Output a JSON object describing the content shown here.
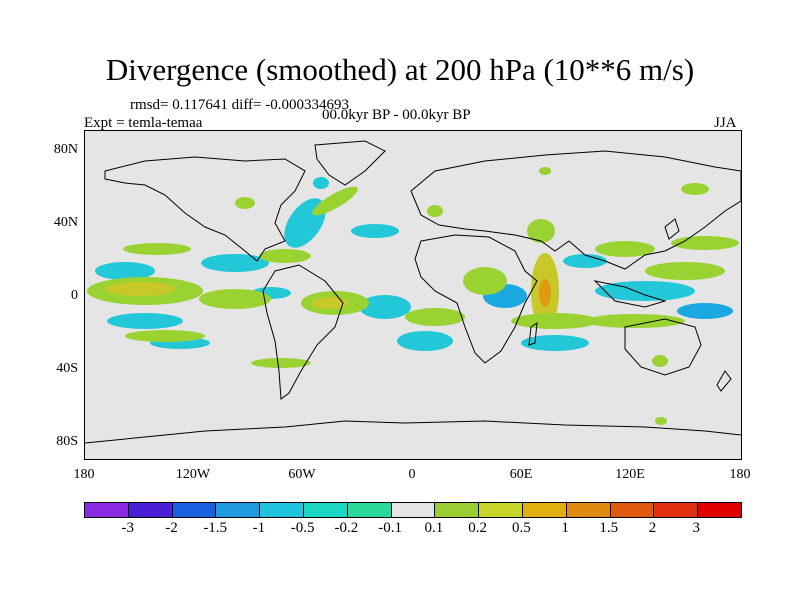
{
  "title": "Divergence (smoothed) at 200 hPa (10**6 m/s)",
  "stats": "rmsd= 0.117641 diff= -0.000334693",
  "period": "00.0kyr BP - 00.0kyr BP",
  "expt": "Expt = temla-temaa",
  "season": "JJA",
  "lat_labels": [
    "80N",
    "40N",
    "0",
    "40S",
    "80S"
  ],
  "lon_labels": [
    "180",
    "120W",
    "60W",
    "0",
    "60E",
    "120E",
    "180"
  ],
  "colorbar": {
    "labels": [
      "-3",
      "-2",
      "-1.5",
      "-1",
      "-0.5",
      "-0.2",
      "-0.1",
      "0.1",
      "0.2",
      "0.5",
      "1",
      "1.5",
      "2",
      "3"
    ],
    "colors": [
      "#8a2be2",
      "#4b1fd6",
      "#1c5fe0",
      "#1e9be0",
      "#20c4dc",
      "#1bd6c0",
      "#2ad89a",
      "#e5e5e5",
      "#9acd32",
      "#c8d42a",
      "#e0b010",
      "#e08a10",
      "#e05a10",
      "#e03010",
      "#e00000"
    ]
  },
  "map": {
    "colors": {
      "background": "#e5e5e5",
      "neg_light": "#22c8d8",
      "neg_mid": "#1aa8e0",
      "pos_light": "#9ad232",
      "pos_mid": "#c8c828",
      "pos_strong": "#e09a10",
      "coast": "#000000"
    }
  }
}
